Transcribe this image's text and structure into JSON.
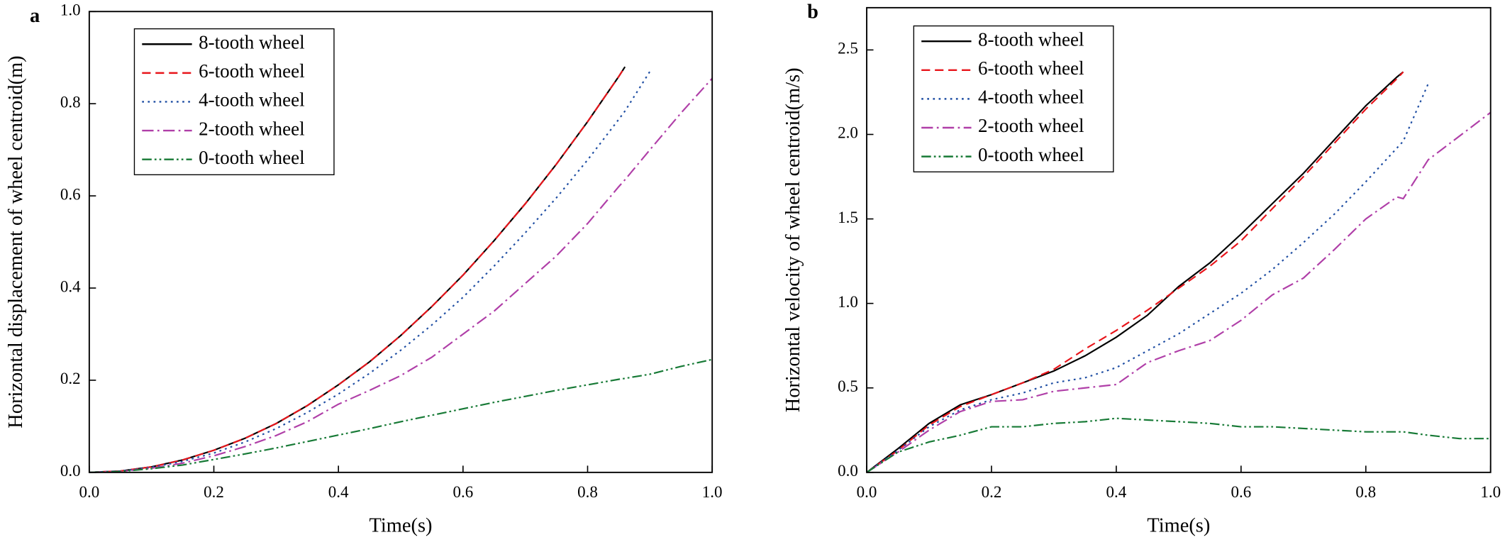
{
  "chart_data": [
    {
      "type": "line",
      "label": "a",
      "xlabel": "Time(s)",
      "ylabel": "Horizontal displacement of wheel centroid(m)",
      "xlim": [
        0,
        1
      ],
      "ylim": [
        0,
        1
      ],
      "xticks": [
        {
          "value": 0,
          "label": "0.0"
        },
        0.2,
        0.4,
        0.6,
        0.8,
        {
          "value": 1,
          "label": "1.0"
        }
      ],
      "yticks": [
        {
          "value": 0,
          "label": "0.0"
        },
        0.2,
        0.4,
        0.6,
        0.8,
        {
          "value": 1,
          "label": "1.0"
        }
      ],
      "legend": "upper-left",
      "x": [
        0,
        0.05,
        0.1,
        0.15,
        0.2,
        0.25,
        0.3,
        0.35,
        0.4,
        0.45,
        0.5,
        0.55,
        0.6,
        0.65,
        0.7,
        0.75,
        0.8,
        0.85,
        0.86,
        0.9,
        0.95,
        1.0
      ],
      "series": [
        {
          "name": "8-tooth wheel",
          "color": "#000000",
          "dash": "solid",
          "values": [
            0,
            0.003,
            0.012,
            0.027,
            0.048,
            0.074,
            0.106,
            0.145,
            0.19,
            0.24,
            0.297,
            0.36,
            0.428,
            0.503,
            0.583,
            0.669,
            0.761,
            0.859,
            0.88,
            null,
            null,
            null
          ]
        },
        {
          "name": "6-tooth wheel",
          "color": "#e8151b",
          "dash": "dashed",
          "values": [
            0,
            0.003,
            0.012,
            0.027,
            0.048,
            0.074,
            0.106,
            0.145,
            0.19,
            0.24,
            0.297,
            0.36,
            0.428,
            0.503,
            0.583,
            0.669,
            0.761,
            0.859,
            0.88,
            null,
            null,
            null
          ]
        },
        {
          "name": "4-tooth wheel",
          "color": "#1f4ea3",
          "dash": "dotted",
          "values": [
            0,
            0.003,
            0.011,
            0.024,
            0.042,
            0.066,
            0.095,
            0.13,
            0.17,
            0.215,
            0.265,
            0.32,
            0.38,
            0.448,
            0.52,
            0.596,
            0.678,
            0.766,
            0.784,
            0.87,
            null,
            null
          ]
        },
        {
          "name": "2-tooth wheel",
          "color": "#b03fa8",
          "dash": "dashdot",
          "values": [
            0,
            0.002,
            0.009,
            0.02,
            0.036,
            0.056,
            0.08,
            0.11,
            0.148,
            0.178,
            0.21,
            0.25,
            0.3,
            0.35,
            0.41,
            0.47,
            0.54,
            0.62,
            0.635,
            0.7,
            0.78,
            0.855
          ]
        },
        {
          "name": "0-tooth wheel",
          "color": "#177a36",
          "dash": "dashdotdot",
          "values": [
            0,
            0.002,
            0.008,
            0.016,
            0.028,
            0.04,
            0.053,
            0.067,
            0.081,
            0.095,
            0.11,
            0.124,
            0.138,
            0.152,
            0.165,
            0.178,
            0.19,
            0.202,
            0.204,
            0.213,
            0.23,
            0.245
          ]
        }
      ]
    },
    {
      "type": "line",
      "label": "b",
      "xlabel": "Time(s)",
      "ylabel": "Horizontal velocity of wheel centroid(m/s)",
      "xlim": [
        0,
        1
      ],
      "ylim": [
        0,
        2.75
      ],
      "xticks": [
        {
          "value": 0,
          "label": "0.0"
        },
        0.2,
        0.4,
        0.6,
        0.8,
        {
          "value": 1,
          "label": "1.0"
        }
      ],
      "yticks": [
        {
          "value": 0,
          "label": "0.0"
        },
        0.5,
        {
          "value": 1,
          "label": "1.0"
        },
        1.5,
        {
          "value": 2,
          "label": "2.0"
        },
        2.5
      ],
      "legend": "upper-left",
      "x": [
        0,
        0.05,
        0.1,
        0.15,
        0.2,
        0.25,
        0.3,
        0.35,
        0.4,
        0.45,
        0.5,
        0.55,
        0.6,
        0.65,
        0.7,
        0.75,
        0.8,
        0.85,
        0.86,
        0.9,
        0.95,
        1.0
      ],
      "series": [
        {
          "name": "8-tooth wheel",
          "color": "#000000",
          "dash": "solid",
          "values": [
            0,
            0.14,
            0.29,
            0.4,
            0.46,
            0.53,
            0.6,
            0.69,
            0.8,
            0.93,
            1.1,
            1.24,
            1.41,
            1.59,
            1.77,
            1.97,
            2.17,
            2.34,
            2.37,
            null,
            null,
            null
          ]
        },
        {
          "name": "6-tooth wheel",
          "color": "#e8151b",
          "dash": "dashed",
          "values": [
            0,
            0.13,
            0.28,
            0.39,
            0.46,
            0.53,
            0.61,
            0.73,
            0.84,
            0.96,
            1.09,
            1.22,
            1.37,
            1.56,
            1.75,
            1.95,
            2.15,
            2.33,
            2.37,
            null,
            null,
            null
          ]
        },
        {
          "name": "4-tooth wheel",
          "color": "#1f4ea3",
          "dash": "dotted",
          "values": [
            0,
            0.13,
            0.27,
            0.37,
            0.43,
            0.47,
            0.53,
            0.56,
            0.62,
            0.72,
            0.82,
            0.94,
            1.06,
            1.2,
            1.36,
            1.53,
            1.72,
            1.92,
            1.96,
            2.3,
            null,
            null
          ]
        },
        {
          "name": "2-tooth wheel",
          "color": "#b03fa8",
          "dash": "dashdot",
          "values": [
            0,
            0.12,
            0.25,
            0.36,
            0.42,
            0.43,
            0.48,
            0.5,
            0.52,
            0.65,
            0.72,
            0.78,
            0.9,
            1.05,
            1.15,
            1.32,
            1.5,
            1.63,
            1.62,
            1.85,
            1.99,
            2.13
          ]
        },
        {
          "name": "0-tooth wheel",
          "color": "#177a36",
          "dash": "dashdotdot",
          "values": [
            0,
            0.12,
            0.18,
            0.22,
            0.27,
            0.27,
            0.29,
            0.3,
            0.32,
            0.31,
            0.3,
            0.29,
            0.27,
            0.27,
            0.26,
            0.25,
            0.24,
            0.24,
            0.24,
            0.22,
            0.2,
            0.2
          ]
        }
      ]
    }
  ]
}
